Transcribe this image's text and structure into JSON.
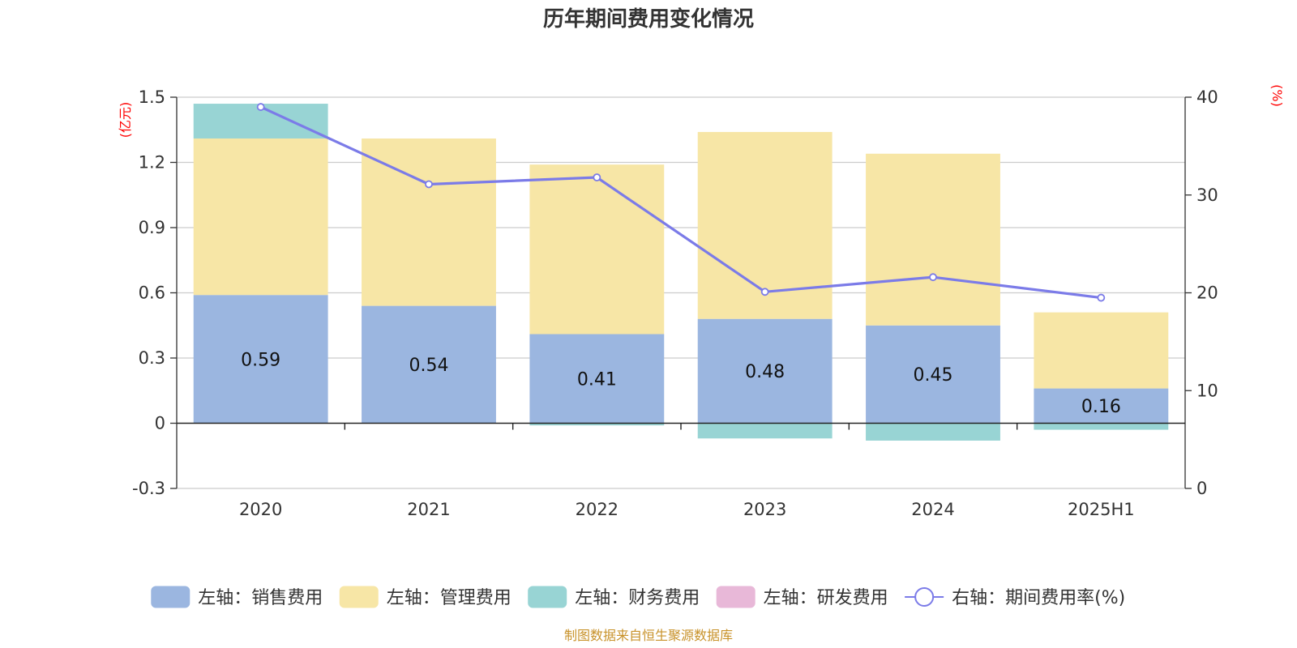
{
  "colors": {
    "sales": "#9bb6e0",
    "admin": "#f7e6a6",
    "finance": "#98d4d4",
    "rnd": "#e8b8d8",
    "rate_line": "#7b7be8",
    "unit_label": "#ff0000",
    "source_text": "#c8922a"
  },
  "chart_data": {
    "type": "bar",
    "title": "历年期间费用变化情况",
    "categories": [
      "2020",
      "2021",
      "2022",
      "2023",
      "2024",
      "2025H1"
    ],
    "left_axis": {
      "unit": "(亿元)",
      "range": [
        -0.3,
        1.5
      ],
      "ticks": [
        "1.5",
        "1.2",
        "0.9",
        "0.6",
        "0.3",
        "0",
        "-0.3"
      ],
      "tick_values": [
        1.5,
        1.2,
        0.9,
        0.6,
        0.3,
        0,
        -0.3
      ]
    },
    "right_axis": {
      "unit": "(%)",
      "range": [
        0,
        40
      ],
      "ticks": [
        "40",
        "30",
        "20",
        "10",
        "0"
      ],
      "tick_values": [
        40,
        30,
        20,
        10,
        0
      ]
    },
    "grid": true,
    "legend_position": "bottom",
    "series": [
      {
        "name": "左轴：销售费用",
        "kind": "bar",
        "axis": "left",
        "color_key": "sales",
        "values": [
          0.59,
          0.54,
          0.41,
          0.48,
          0.45,
          0.16
        ],
        "labels": [
          "0.59",
          "0.54",
          "0.41",
          "0.48",
          "0.45",
          "0.16"
        ]
      },
      {
        "name": "左轴：管理费用",
        "kind": "bar",
        "axis": "left",
        "color_key": "admin",
        "values": [
          0.72,
          0.77,
          0.78,
          0.86,
          0.79,
          0.35
        ]
      },
      {
        "name": "左轴：财务费用",
        "kind": "bar",
        "axis": "left",
        "color_key": "finance",
        "values": [
          0.16,
          0.0,
          -0.01,
          -0.07,
          -0.08,
          -0.03
        ]
      },
      {
        "name": "左轴：研发费用",
        "kind": "bar",
        "axis": "left",
        "color_key": "rnd",
        "values": [
          0,
          0,
          0,
          0,
          0,
          0
        ]
      },
      {
        "name": "右轴：期间费用率(%)",
        "kind": "line",
        "axis": "right",
        "color_key": "rate_line",
        "values": [
          39.0,
          31.1,
          31.8,
          20.1,
          21.6,
          19.5
        ]
      }
    ]
  },
  "source": "制图数据来自恒生聚源数据库"
}
